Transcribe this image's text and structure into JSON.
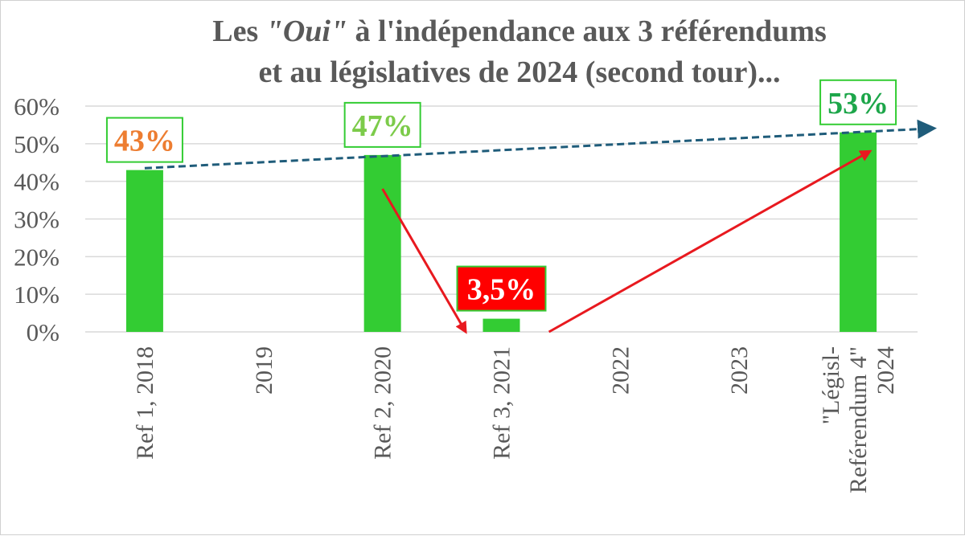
{
  "chart_data": {
    "type": "bar",
    "title": {
      "line1_prefix": "Les ",
      "line1_quoted": "\"Oui\"",
      "line1_suffix": " à l'indépendance aux 3 référendums",
      "line2": "et au législatives de 2024 (second tour)..."
    },
    "categories": [
      {
        "lines": [
          "Ref 1, 2018"
        ]
      },
      {
        "lines": [
          "2019"
        ]
      },
      {
        "lines": [
          "Ref 2,  2020"
        ]
      },
      {
        "lines": [
          "Ref 3, 2021"
        ]
      },
      {
        "lines": [
          "2022"
        ]
      },
      {
        "lines": [
          "2023"
        ]
      },
      {
        "lines": [
          "\"Législ-",
          "Reférendum 4\"",
          "2024"
        ]
      }
    ],
    "values": [
      43,
      null,
      47,
      3.5,
      null,
      null,
      53
    ],
    "data_labels": [
      {
        "index": 0,
        "text": "43%",
        "color": "#ED7D31",
        "fill": "#ffffff"
      },
      {
        "index": 2,
        "text": "47%",
        "color": "#7CCB4A",
        "fill": "#ffffff"
      },
      {
        "index": 3,
        "text": "3,5%",
        "color": "#ffffff",
        "fill": "#FF0000"
      },
      {
        "index": 6,
        "text": "53%",
        "color": "#1DA64A",
        "fill": "#ffffff"
      }
    ],
    "y_ticks": [
      "0%",
      "10%",
      "20%",
      "30%",
      "40%",
      "50%",
      "60%"
    ],
    "ylim": [
      0,
      60
    ],
    "grid": true,
    "colors": {
      "bar": "#33CC33",
      "label_border": "#33CC33",
      "trend": "#1F5C7A",
      "arrow": "#E8191F",
      "grid": "#D9D9D9",
      "text": "#595959"
    },
    "trend_line": {
      "from": {
        "index": 0,
        "value": 43.5
      },
      "to": {
        "index": 7,
        "value": 54
      }
    },
    "arrows": [
      {
        "from": {
          "index": 2,
          "value": 38
        },
        "to": {
          "index": 2.7,
          "value": 0
        }
      },
      {
        "from": {
          "index": 3.4,
          "value": 0
        },
        "to": {
          "index": 6.1,
          "value": 48
        }
      }
    ]
  }
}
